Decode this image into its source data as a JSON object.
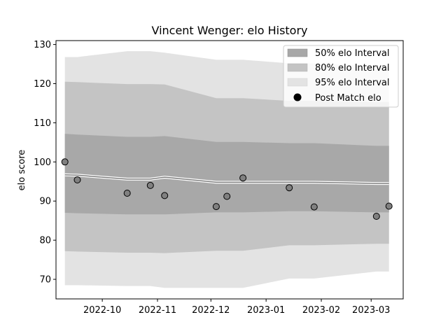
{
  "chart_data": {
    "type": "area",
    "title": "Vincent Wenger: elo History",
    "xlabel": "",
    "ylabel": "elo score",
    "ylim": [
      65,
      131
    ],
    "xlim": [
      "2022-09-05",
      "2023-03-19"
    ],
    "x_ticks": [
      "2022-10-01",
      "2022-11-01",
      "2022-12-01",
      "2023-01-01",
      "2023-02-01",
      "2023-03-01"
    ],
    "x_tick_labels": [
      "2022-10",
      "2022-11",
      "2022-12",
      "2023-01",
      "2023-02",
      "2023-03"
    ],
    "y_ticks": [
      70,
      80,
      90,
      100,
      110,
      120,
      130
    ],
    "y_tick_labels": [
      "70",
      "80",
      "90",
      "100",
      "110",
      "120",
      "130"
    ],
    "grid": false,
    "legend_position": "top-right",
    "legend": [
      "50% elo Interval",
      "80% elo Interval",
      "95% elo Interval",
      "Post Match elo"
    ],
    "colors": {
      "band50": "#a8a8a8",
      "band80": "#c4c4c4",
      "band95": "#e3e3e3",
      "mean_line": "#808080",
      "point_fill": "#808080",
      "point_edge": "#000000"
    },
    "dates": [
      "2022-09-10",
      "2022-09-17",
      "2022-10-15",
      "2022-10-28",
      "2022-11-05",
      "2022-12-04",
      "2022-12-10",
      "2022-12-19",
      "2023-01-14",
      "2023-01-28",
      "2023-03-04",
      "2023-03-11"
    ],
    "mean": [
      96.7,
      96.6,
      95.6,
      95.6,
      96.1,
      94.8,
      94.8,
      94.8,
      94.8,
      94.8,
      94.5,
      94.5
    ],
    "band50_low": [
      87.0,
      86.9,
      86.6,
      86.6,
      86.6,
      87.1,
      87.1,
      87.1,
      87.4,
      87.4,
      87.1,
      87.1
    ],
    "band50_high": [
      107.2,
      107.0,
      106.4,
      106.4,
      106.6,
      105.1,
      105.1,
      105.1,
      104.8,
      104.8,
      104.1,
      104.1
    ],
    "band80_low": [
      77.2,
      77.1,
      76.8,
      76.8,
      76.7,
      77.3,
      77.3,
      77.3,
      78.7,
      78.7,
      79.1,
      79.1
    ],
    "band80_high": [
      120.5,
      120.4,
      119.9,
      119.9,
      119.8,
      116.3,
      116.3,
      116.3,
      115.6,
      115.6,
      115.3,
      115.3
    ],
    "band95_low": [
      68.5,
      68.5,
      68.3,
      68.3,
      67.8,
      67.8,
      67.8,
      67.8,
      70.2,
      70.2,
      72.0,
      72.0
    ],
    "band95_high": [
      126.8,
      126.8,
      128.3,
      128.3,
      127.9,
      126.1,
      126.1,
      126.1,
      125.2,
      125.2,
      124.5,
      124.5
    ],
    "post_match_elo": [
      100.0,
      95.4,
      92.0,
      94.0,
      91.4,
      88.6,
      91.2,
      95.9,
      93.4,
      88.5,
      86.1,
      88.7
    ]
  }
}
